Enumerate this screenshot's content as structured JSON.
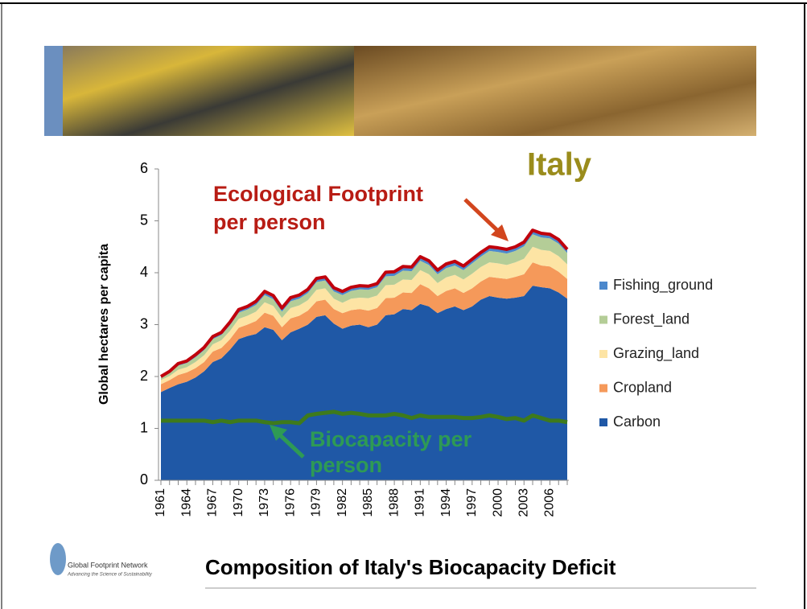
{
  "chart_data": {
    "type": "stacked_area",
    "title": "Italy",
    "subtitle": "Composition of Italy's Biocapacity Deficit",
    "ylabel": "Global hectares per capita",
    "logo": [
      "Global Footprint Network",
      "Advancing the Science of Sustainability"
    ],
    "annotations": [
      {
        "lines": [
          "Ecological Footprint",
          "per person"
        ],
        "color": "#b81c14"
      },
      {
        "lines": [
          "Biocapacity per",
          "person"
        ],
        "color": "#2e9a55"
      }
    ],
    "x": [
      1961,
      1962,
      1963,
      1964,
      1965,
      1966,
      1967,
      1968,
      1969,
      1970,
      1971,
      1972,
      1973,
      1974,
      1975,
      1976,
      1977,
      1978,
      1979,
      1980,
      1981,
      1982,
      1983,
      1984,
      1985,
      1986,
      1987,
      1988,
      1989,
      1990,
      1991,
      1992,
      1993,
      1994,
      1995,
      1996,
      1997,
      1998,
      1999,
      2000,
      2001,
      2002,
      2003,
      2004,
      2005,
      2006,
      2007,
      2008
    ],
    "xlim": [
      1961,
      2008
    ],
    "xticks": [
      1961,
      1964,
      1967,
      1970,
      1973,
      1976,
      1979,
      1982,
      1985,
      1988,
      1991,
      1994,
      1997,
      2000,
      2003,
      2006
    ],
    "ylim": [
      0,
      6
    ],
    "yticks": [
      0,
      1,
      2,
      3,
      4,
      5,
      6
    ],
    "series": [
      {
        "name": "Carbon",
        "color": "#1f58a6",
        "values": [
          1.7,
          1.78,
          1.85,
          1.9,
          1.98,
          2.1,
          2.28,
          2.35,
          2.52,
          2.72,
          2.78,
          2.82,
          2.95,
          2.9,
          2.7,
          2.85,
          2.92,
          3.0,
          3.15,
          3.18,
          3.02,
          2.92,
          2.98,
          3.0,
          2.95,
          3.0,
          3.18,
          3.2,
          3.3,
          3.28,
          3.4,
          3.35,
          3.22,
          3.3,
          3.35,
          3.28,
          3.35,
          3.48,
          3.55,
          3.52,
          3.5,
          3.52,
          3.55,
          3.75,
          3.72,
          3.7,
          3.62,
          3.5
        ]
      },
      {
        "name": "Cropland",
        "color": "#f5995a",
        "values": [
          0.15,
          0.15,
          0.18,
          0.18,
          0.18,
          0.18,
          0.2,
          0.2,
          0.2,
          0.22,
          0.22,
          0.25,
          0.28,
          0.27,
          0.25,
          0.27,
          0.25,
          0.27,
          0.3,
          0.3,
          0.28,
          0.3,
          0.3,
          0.3,
          0.32,
          0.32,
          0.33,
          0.32,
          0.32,
          0.33,
          0.38,
          0.35,
          0.33,
          0.35,
          0.35,
          0.33,
          0.35,
          0.35,
          0.37,
          0.38,
          0.38,
          0.4,
          0.42,
          0.45,
          0.42,
          0.42,
          0.4,
          0.38
        ]
      },
      {
        "name": "Grazing_land",
        "color": "#fde4a4",
        "values": [
          0.08,
          0.08,
          0.1,
          0.1,
          0.12,
          0.13,
          0.14,
          0.15,
          0.16,
          0.17,
          0.17,
          0.18,
          0.2,
          0.19,
          0.18,
          0.2,
          0.2,
          0.2,
          0.22,
          0.22,
          0.2,
          0.2,
          0.22,
          0.22,
          0.24,
          0.24,
          0.25,
          0.25,
          0.25,
          0.25,
          0.27,
          0.27,
          0.25,
          0.26,
          0.26,
          0.26,
          0.28,
          0.28,
          0.28,
          0.28,
          0.27,
          0.28,
          0.3,
          0.3,
          0.3,
          0.3,
          0.3,
          0.28
        ]
      },
      {
        "name": "Forest_land",
        "color": "#b4cd97",
        "values": [
          0.05,
          0.06,
          0.08,
          0.08,
          0.09,
          0.1,
          0.1,
          0.1,
          0.11,
          0.12,
          0.12,
          0.13,
          0.14,
          0.13,
          0.12,
          0.13,
          0.13,
          0.14,
          0.15,
          0.15,
          0.14,
          0.15,
          0.15,
          0.16,
          0.16,
          0.16,
          0.17,
          0.17,
          0.17,
          0.17,
          0.18,
          0.18,
          0.17,
          0.18,
          0.18,
          0.18,
          0.2,
          0.2,
          0.22,
          0.22,
          0.22,
          0.22,
          0.24,
          0.24,
          0.24,
          0.24,
          0.24,
          0.22
        ]
      },
      {
        "name": "Fishing_ground",
        "color": "#4c88cc",
        "values": [
          0.02,
          0.03,
          0.04,
          0.04,
          0.05,
          0.05,
          0.05,
          0.05,
          0.06,
          0.06,
          0.06,
          0.07,
          0.07,
          0.07,
          0.07,
          0.07,
          0.07,
          0.07,
          0.07,
          0.07,
          0.07,
          0.07,
          0.07,
          0.07,
          0.07,
          0.07,
          0.08,
          0.08,
          0.08,
          0.08,
          0.08,
          0.08,
          0.08,
          0.08,
          0.08,
          0.08,
          0.08,
          0.08,
          0.08,
          0.08,
          0.08,
          0.08,
          0.08,
          0.08,
          0.08,
          0.08,
          0.08,
          0.07
        ]
      }
    ],
    "biocapacity": {
      "color": "#3e7a1c",
      "values": [
        1.15,
        1.15,
        1.15,
        1.15,
        1.15,
        1.15,
        1.12,
        1.15,
        1.12,
        1.15,
        1.15,
        1.15,
        1.12,
        1.1,
        1.12,
        1.12,
        1.1,
        1.25,
        1.28,
        1.3,
        1.32,
        1.28,
        1.3,
        1.28,
        1.25,
        1.25,
        1.25,
        1.28,
        1.25,
        1.2,
        1.25,
        1.22,
        1.22,
        1.22,
        1.22,
        1.2,
        1.2,
        1.22,
        1.25,
        1.22,
        1.18,
        1.2,
        1.15,
        1.25,
        1.2,
        1.15,
        1.15,
        1.12
      ]
    },
    "footprint_color": "#c0000c"
  }
}
